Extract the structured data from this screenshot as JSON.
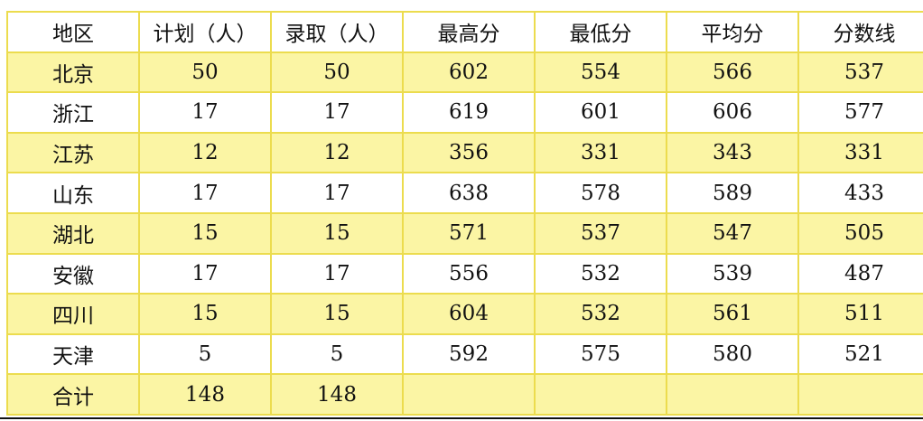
{
  "table": {
    "headers": [
      "地区",
      "计划（人）",
      "录取（人）",
      "最高分",
      "最低分",
      "平均分",
      "分数线"
    ],
    "rows": [
      [
        "北京",
        "50",
        "50",
        "602",
        "554",
        "566",
        "537"
      ],
      [
        "浙江",
        "17",
        "17",
        "619",
        "601",
        "606",
        "577"
      ],
      [
        "江苏",
        "12",
        "12",
        "356",
        "331",
        "343",
        "331"
      ],
      [
        "山东",
        "17",
        "17",
        "638",
        "578",
        "589",
        "433"
      ],
      [
        "湖北",
        "15",
        "15",
        "571",
        "537",
        "547",
        "505"
      ],
      [
        "安徽",
        "17",
        "17",
        "556",
        "532",
        "539",
        "487"
      ],
      [
        "四川",
        "15",
        "15",
        "604",
        "532",
        "561",
        "511"
      ],
      [
        "天津",
        "5",
        "5",
        "592",
        "575",
        "580",
        "521"
      ],
      [
        "合计",
        "148",
        "148",
        "",
        "",
        "",
        ""
      ]
    ]
  },
  "colors": {
    "shade": "#fbf5a4",
    "border": "#ecdc4e"
  }
}
